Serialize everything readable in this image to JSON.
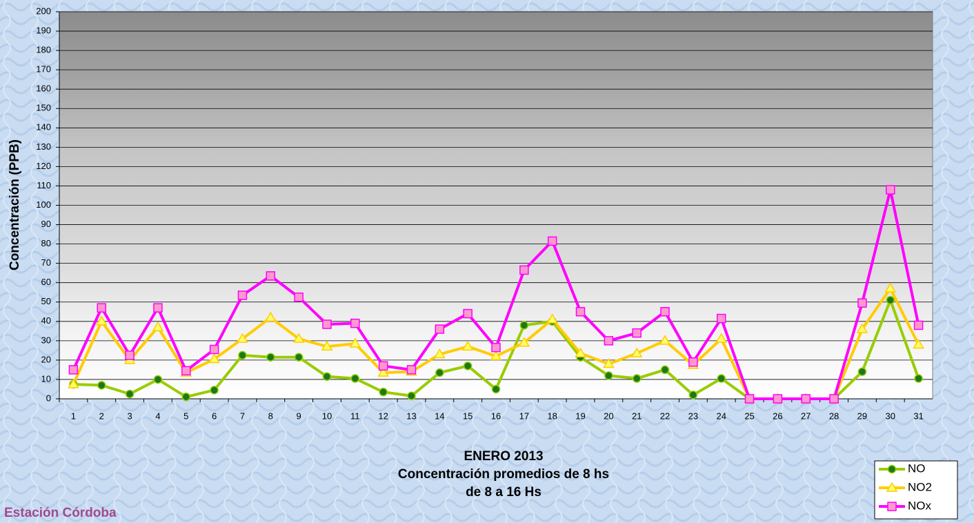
{
  "chart_data": {
    "type": "line",
    "title": [
      "ENERO 2013",
      "Concentración promedios de 8 hs",
      "de 8 a 16 Hs"
    ],
    "annotation": "Estación Córdoba",
    "y_label": "Concentración (PPB)",
    "categories": [
      1,
      2,
      3,
      4,
      5,
      6,
      7,
      8,
      9,
      10,
      11,
      12,
      13,
      14,
      15,
      16,
      17,
      18,
      19,
      20,
      21,
      22,
      23,
      24,
      25,
      26,
      27,
      28,
      29,
      30,
      31
    ],
    "series": [
      {
        "name": "NO",
        "color": "#99cc00",
        "marker": "circle",
        "marker_color": "#1a7a1a",
        "values": [
          7.5,
          7,
          2.5,
          10,
          1,
          4.5,
          22.5,
          21.5,
          21.5,
          11.5,
          10.5,
          3.5,
          1.5,
          13.5,
          17,
          5,
          38,
          40,
          21.5,
          12,
          10.5,
          15,
          2,
          10.5,
          0,
          0,
          0,
          0,
          14,
          51,
          10.5
        ]
      },
      {
        "name": "NO2",
        "color": "#ffcc00",
        "marker": "triangle",
        "marker_color": "#ffff66",
        "values": [
          7.5,
          40,
          20,
          37,
          13.5,
          20.5,
          31,
          42,
          31,
          27,
          28.5,
          13.5,
          14,
          23,
          27,
          22,
          29,
          41,
          23.5,
          18,
          23.5,
          30,
          17.5,
          31,
          0,
          0,
          0,
          0,
          36,
          57,
          28
        ]
      },
      {
        "name": "NOx",
        "color": "#ff00ff",
        "marker": "square",
        "marker_color": "#ff99cc",
        "values": [
          15,
          47,
          22.5,
          47,
          14.5,
          25.5,
          53.5,
          63.5,
          52.5,
          38.5,
          39,
          17,
          15,
          36,
          44,
          26.5,
          66.5,
          81.5,
          45,
          30,
          34,
          45,
          19,
          41.5,
          0,
          0,
          0,
          0,
          49.5,
          108,
          38
        ]
      }
    ],
    "ylim": [
      0,
      200
    ],
    "yticks": [
      0,
      10,
      20,
      30,
      40,
      50,
      60,
      70,
      80,
      90,
      100,
      110,
      120,
      130,
      140,
      150,
      160,
      170,
      180,
      190,
      200
    ],
    "grid": true,
    "legend": "bottom-right"
  }
}
